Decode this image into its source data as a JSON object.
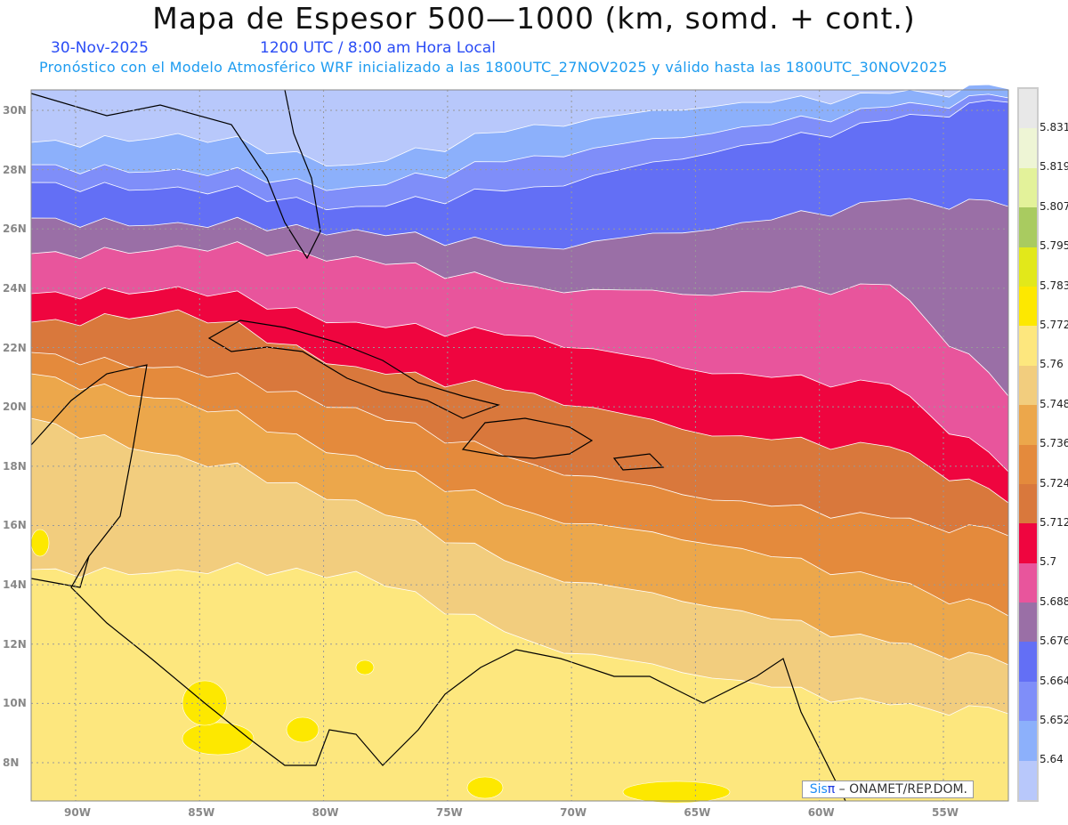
{
  "header": {
    "title": "Mapa de Espesor 500—1000 (km, somd. + cont.)",
    "date": "30-Nov-2025",
    "time": "1200 UTC / 8:00 am Hora Local",
    "subtitle": "Pronóstico con el Modelo Atmosférico WRF inicializado a las 1800UTC_27NOV2025 y válido hasta las  1800UTC_30NOV2025"
  },
  "axes": {
    "lat_labels": [
      "30N",
      "28N",
      "26N",
      "24N",
      "22N",
      "20N",
      "18N",
      "16N",
      "14N",
      "12N",
      "10N",
      "8N"
    ],
    "lon_labels": [
      "90W",
      "85W",
      "80W",
      "75W",
      "70W",
      "65W",
      "60W",
      "55W"
    ]
  },
  "colorbar": {
    "colors": [
      "#e8e8e8",
      "#eef5d5",
      "#e3f29a",
      "#a9cb60",
      "#e2e81a",
      "#fde800",
      "#fde77e",
      "#f2cd7e",
      "#eca74b",
      "#e48a3c",
      "#d9783c",
      "#ef053f",
      "#e8559c",
      "#9a6fa6",
      "#636ff5",
      "#7f8ef9",
      "#8cb0fb",
      "#b8c8fb"
    ],
    "labels": [
      "5.831",
      "5.819",
      "5.807",
      "5.795",
      "5.783",
      "5.772",
      "5.76",
      "5.748",
      "5.736",
      "5.724",
      "5.712",
      "5.7",
      "5.688",
      "5.676",
      "5.664",
      "5.652",
      "5.64"
    ]
  },
  "credit": {
    "sis": "Sis",
    "pi": "π",
    "rest": " – ONAMET/REP.DOM."
  }
}
